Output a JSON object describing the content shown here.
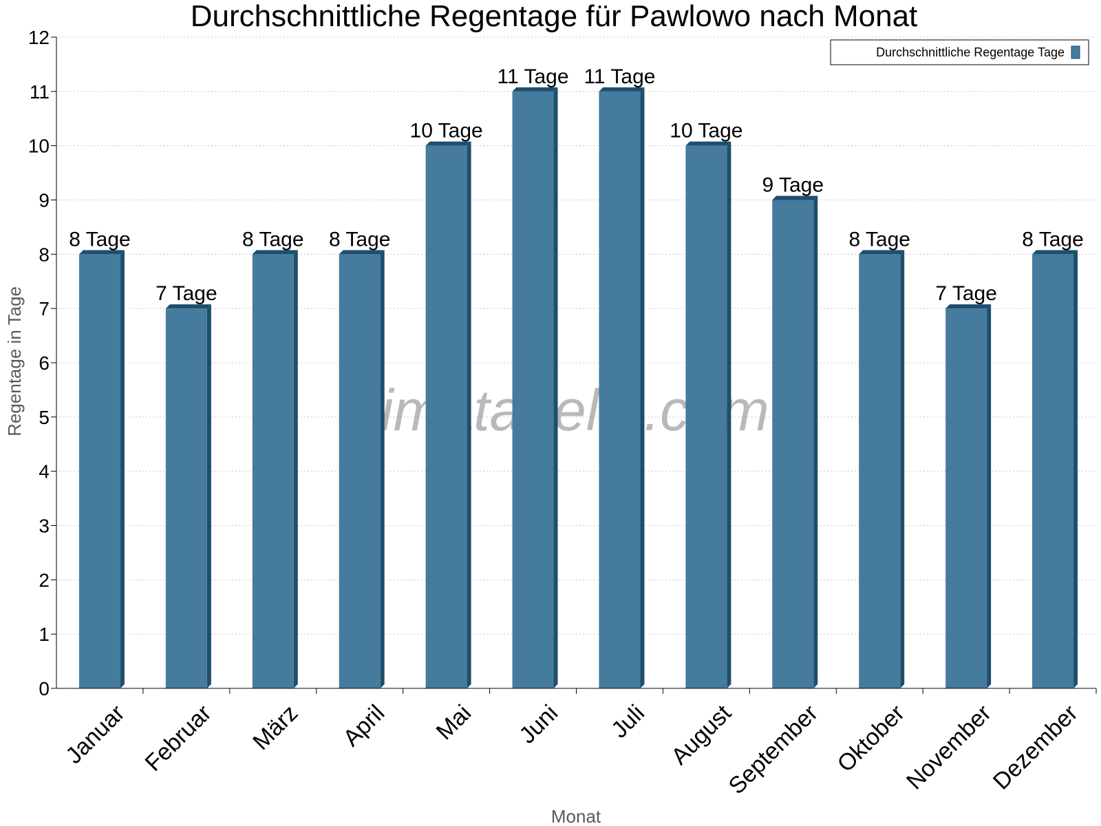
{
  "chart_data": {
    "type": "bar",
    "title": "Durchschnittliche Regentage für Pawlowo nach Monat",
    "xlabel": "Monat",
    "ylabel": "Regentage in Tage",
    "categories": [
      "Januar",
      "Februar",
      "März",
      "April",
      "Mai",
      "Juni",
      "Juli",
      "August",
      "September",
      "Oktober",
      "November",
      "Dezember"
    ],
    "series": [
      {
        "name": "Durchschnittliche Regentage Tage",
        "values": [
          8,
          7,
          8,
          8,
          10,
          11,
          11,
          10,
          9,
          8,
          7,
          8
        ],
        "labels": [
          "8 Tage",
          "7 Tage",
          "8 Tage",
          "8 Tage",
          "10 Tage",
          "11 Tage",
          "11 Tage",
          "10 Tage",
          "9 Tage",
          "8 Tage",
          "7 Tage",
          "8 Tage"
        ]
      }
    ],
    "ylim": [
      0,
      12
    ],
    "yticks": [
      "0",
      "1",
      "2",
      "3",
      "4",
      "5",
      "6",
      "7",
      "8",
      "9",
      "10",
      "11",
      "12"
    ],
    "grid": true,
    "legend_position": "top-right",
    "colors": {
      "bar": "#457b9d",
      "bar_side": "#1d4e6e",
      "grid": "#c8c8c8"
    },
    "watermark": "klimatabelle.com"
  }
}
